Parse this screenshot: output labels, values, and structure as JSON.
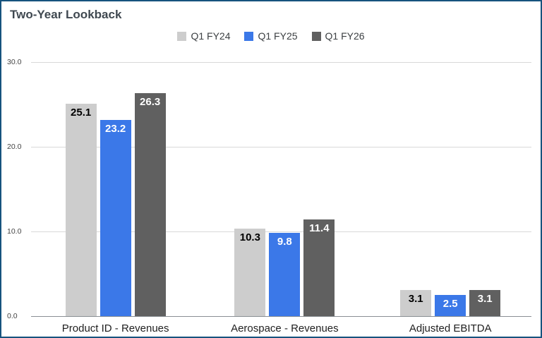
{
  "title": "Two-Year Lookback",
  "frame": {
    "border_color": "#16537e",
    "background_color": "#ffffff",
    "title_color": "#3f4850"
  },
  "chart_data": {
    "type": "bar",
    "title": "Two-Year Lookback",
    "categories": [
      "Product ID - Revenues",
      "Aerospace - Revenues",
      "Adjusted EBITDA"
    ],
    "series": [
      {
        "name": "Q1 FY24",
        "color": "#cdcdcd",
        "label_color": "#000000",
        "values": [
          25.1,
          10.3,
          3.1
        ]
      },
      {
        "name": "Q1 FY25",
        "color": "#3b78e8",
        "label_color": "#ffffff",
        "values": [
          23.2,
          9.8,
          2.5
        ]
      },
      {
        "name": "Q1 FY26",
        "color": "#606060",
        "label_color": "#ffffff",
        "values": [
          26.3,
          11.4,
          3.1
        ]
      }
    ],
    "xlabel": "",
    "ylabel": "",
    "ylim": [
      0,
      30
    ],
    "yticks": [
      0,
      10,
      20,
      30
    ],
    "ytick_labels": [
      "0.0",
      "10.0",
      "20.0",
      "30.0"
    ],
    "grid": true,
    "legend_position": "top",
    "data_labels": "inside-top"
  }
}
